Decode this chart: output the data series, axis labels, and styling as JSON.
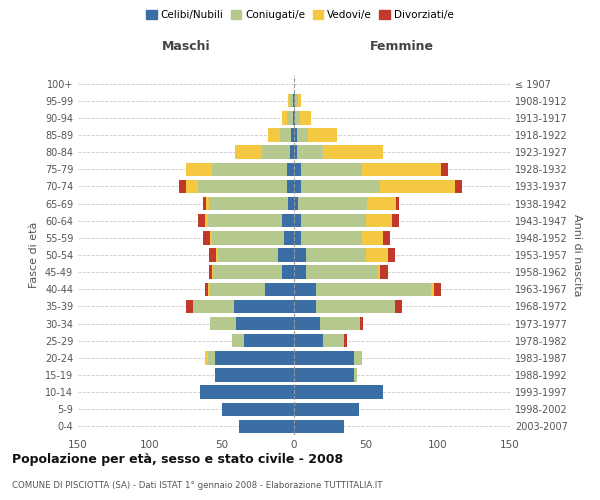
{
  "age_groups": [
    "0-4",
    "5-9",
    "10-14",
    "15-19",
    "20-24",
    "25-29",
    "30-34",
    "35-39",
    "40-44",
    "45-49",
    "50-54",
    "55-59",
    "60-64",
    "65-69",
    "70-74",
    "75-79",
    "80-84",
    "85-89",
    "90-94",
    "95-99",
    "100+"
  ],
  "birth_years": [
    "2003-2007",
    "1998-2002",
    "1993-1997",
    "1988-1992",
    "1983-1987",
    "1978-1982",
    "1973-1977",
    "1968-1972",
    "1963-1967",
    "1958-1962",
    "1953-1957",
    "1948-1952",
    "1943-1947",
    "1938-1942",
    "1933-1937",
    "1928-1932",
    "1923-1927",
    "1918-1922",
    "1913-1917",
    "1908-1912",
    "≤ 1907"
  ],
  "male": {
    "celibi": [
      38,
      50,
      65,
      55,
      55,
      35,
      40,
      42,
      20,
      8,
      11,
      7,
      8,
      4,
      5,
      5,
      3,
      2,
      1,
      1,
      0
    ],
    "coniugati": [
      0,
      0,
      0,
      0,
      5,
      8,
      18,
      28,
      38,
      48,
      42,
      50,
      52,
      55,
      62,
      52,
      20,
      8,
      4,
      2,
      0
    ],
    "vedovi": [
      0,
      0,
      0,
      0,
      2,
      0,
      0,
      0,
      2,
      1,
      1,
      1,
      2,
      2,
      8,
      18,
      18,
      8,
      3,
      1,
      0
    ],
    "divorziati": [
      0,
      0,
      0,
      0,
      0,
      0,
      0,
      5,
      2,
      2,
      5,
      5,
      5,
      2,
      5,
      0,
      0,
      0,
      0,
      0,
      0
    ]
  },
  "female": {
    "nubili": [
      35,
      45,
      62,
      42,
      42,
      20,
      18,
      15,
      15,
      8,
      8,
      5,
      5,
      3,
      5,
      5,
      2,
      2,
      1,
      1,
      0
    ],
    "coniugate": [
      0,
      0,
      0,
      2,
      5,
      15,
      28,
      55,
      80,
      50,
      42,
      42,
      45,
      48,
      55,
      42,
      18,
      8,
      3,
      2,
      0
    ],
    "vedove": [
      0,
      0,
      0,
      0,
      0,
      0,
      0,
      0,
      2,
      2,
      15,
      15,
      18,
      20,
      52,
      55,
      42,
      20,
      8,
      2,
      0
    ],
    "divorziate": [
      0,
      0,
      0,
      0,
      0,
      2,
      2,
      5,
      5,
      5,
      5,
      5,
      5,
      2,
      5,
      5,
      0,
      0,
      0,
      0,
      0
    ]
  },
  "colors": {
    "celibi": "#3a6ea5",
    "coniugati": "#b5c98e",
    "vedovi": "#f5c842",
    "divorziati": "#c0392b"
  },
  "title": "Popolazione per età, sesso e stato civile - 2008",
  "subtitle": "COMUNE DI PISCIOTTA (SA) - Dati ISTAT 1° gennaio 2008 - Elaborazione TUTTITALIA.IT",
  "xlabel_left": "Maschi",
  "xlabel_right": "Femmine",
  "ylabel_left": "Fasce di età",
  "ylabel_right": "Anni di nascita",
  "xlim": 150,
  "bg_color": "#ffffff",
  "plot_bg_color": "#ffffff",
  "grid_color": "#cccccc",
  "legend_labels": [
    "Celibi/Nubili",
    "Coniugati/e",
    "Vedovi/e",
    "Divorziati/e"
  ]
}
